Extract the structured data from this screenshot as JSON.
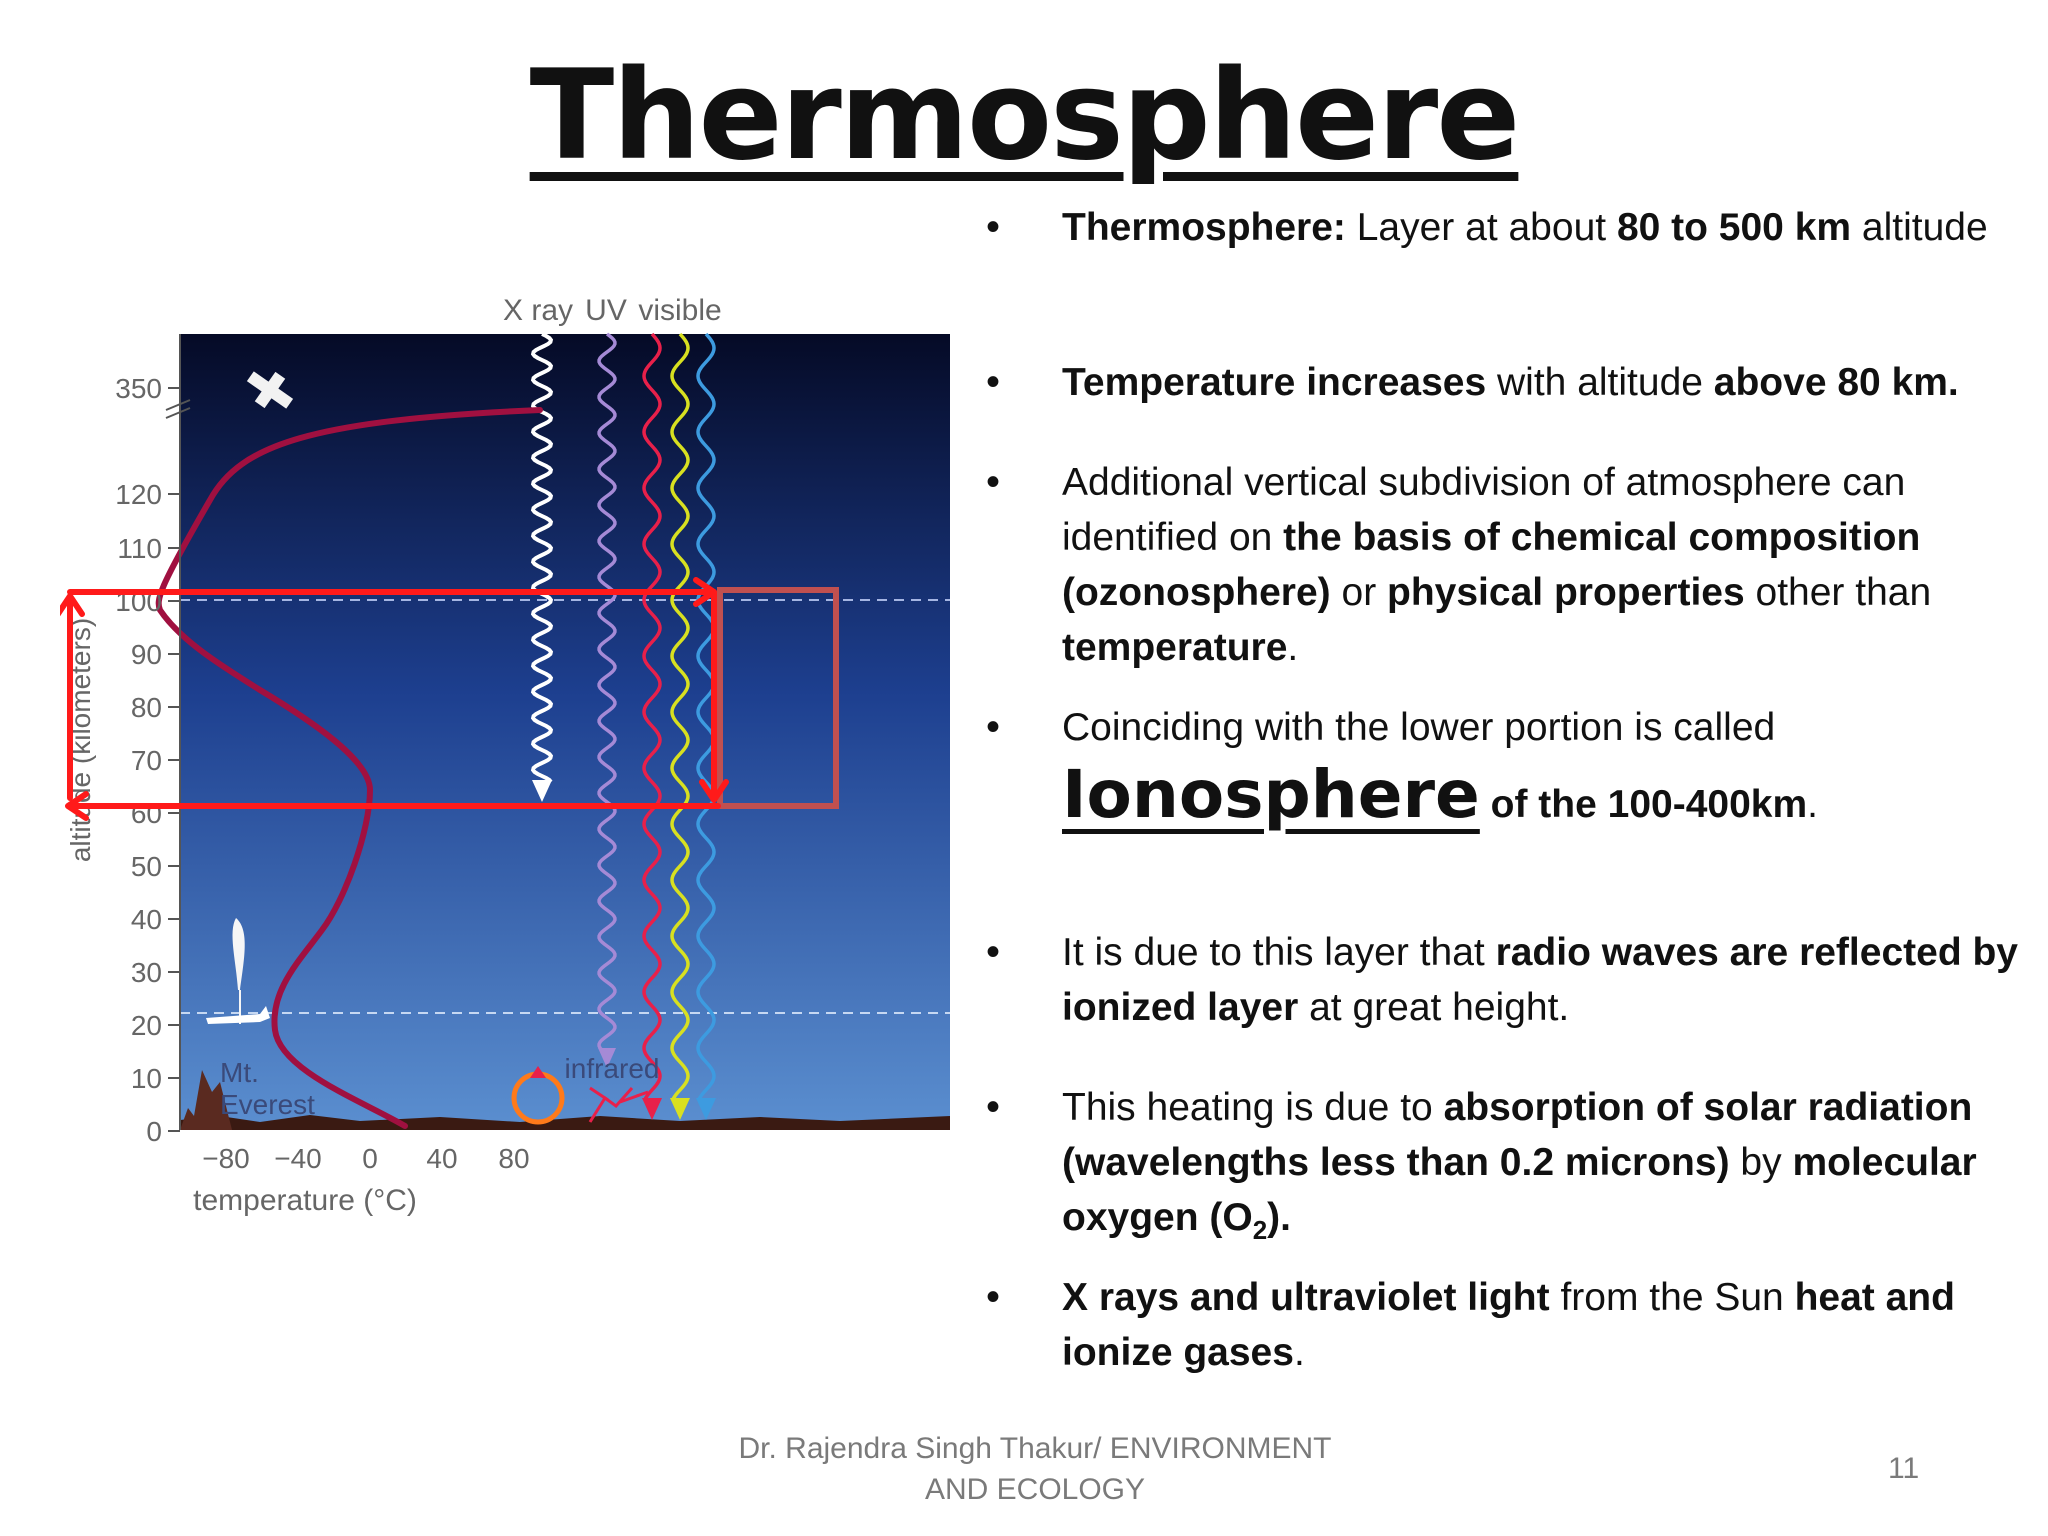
{
  "slide": {
    "title": "Thermosphere",
    "footer": "Dr. Rajendra Singh Thakur/ ENVIRONMENT AND ECOLOGY",
    "page_number": "11"
  },
  "bullets": [
    {
      "parts": [
        {
          "t": "Thermosphere:",
          "b": true
        },
        {
          "t": " Layer at about  "
        },
        {
          "t": "80 to 500 km",
          "b": true
        },
        {
          "t": " altitude"
        }
      ]
    },
    {
      "parts": [
        {
          "t": "Temperature increases",
          "b": true
        },
        {
          "t": " with altitude "
        },
        {
          "t": "above 80 km.",
          "b": true
        }
      ]
    },
    {
      "parts": [
        {
          "t": "Additional vertical subdivision of atmosphere can identified on "
        },
        {
          "t": "the basis of chemical composition (ozonosphere)",
          "b": true
        },
        {
          "t": "  or "
        },
        {
          "t": "physical properties",
          "b": true
        },
        {
          "t": " other than "
        },
        {
          "t": "temperature",
          "b": true
        },
        {
          "t": "."
        }
      ]
    },
    {
      "line1": "Coinciding with the lower portion is called",
      "term": "Ionosphere",
      "suffix_bold": " of the 100-400km",
      "suffix": "."
    },
    {
      "parts": [
        {
          "t": "It is due to this layer that "
        },
        {
          "t": "radio waves are reflected by ionized layer",
          "b": true
        },
        {
          "t": " at great height."
        }
      ]
    },
    {
      "parts": [
        {
          "t": "This heating is due to "
        },
        {
          "t": "absorption of solar radiation (wavelengths less than 0.2 microns)",
          "b": true
        },
        {
          "t": " by "
        },
        {
          "t": "molecular oxygen (O",
          "b": true
        },
        {
          "t": "2",
          "b": true,
          "sub": true
        },
        {
          "t": ").",
          "b": true
        }
      ]
    },
    {
      "parts": [
        {
          "t": "X rays and ultraviolet light",
          "b": true
        },
        {
          "t": " from the Sun "
        },
        {
          "t": "heat and ionize gases",
          "b": true
        },
        {
          "t": "."
        }
      ]
    }
  ],
  "figure": {
    "radiation_labels": [
      "X ray",
      "UV",
      "visible"
    ],
    "infrared_label": "infrared",
    "everest_label": [
      "Mt.",
      "Everest"
    ],
    "y_label": "altitude (kilometers)",
    "x_label": "temperature (°C)",
    "y_ticks": [
      "350",
      "120",
      "110",
      "100",
      "90",
      "80",
      "70",
      "60",
      "50",
      "40",
      "30",
      "20",
      "10",
      "0"
    ],
    "x_ticks": [
      "−80",
      "−40",
      "0",
      "40",
      "80"
    ],
    "colors": {
      "sky_top": "#050a26",
      "sky_mid": "#1d3f8f",
      "sky_bottom": "#5b8fd0",
      "temperature_curve": "#a01040",
      "highlight_red": "#ff1a1a",
      "highlight_box": "#c05050",
      "xray_wave": "#ffffff",
      "uv_wave": "#a58ad6",
      "visible_waves": [
        "#e8204a",
        "#d8e020",
        "#3d9be0"
      ]
    }
  }
}
